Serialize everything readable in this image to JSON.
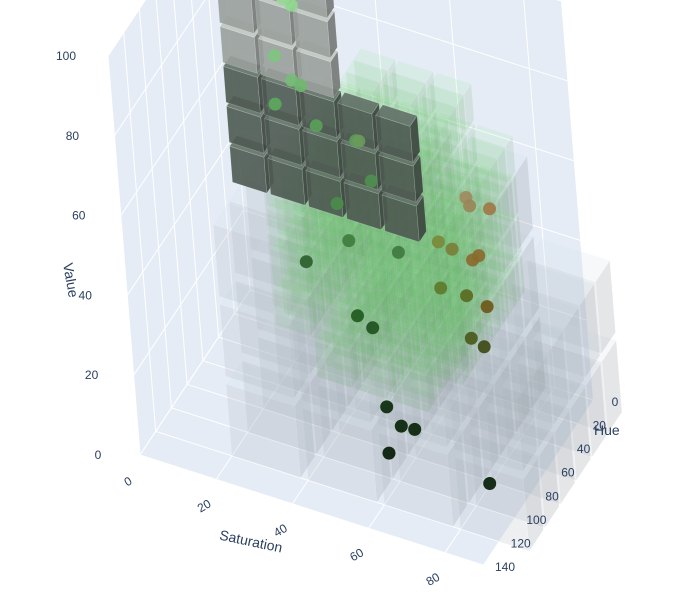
{
  "chart_data": {
    "type": "scatter",
    "projection": "3d",
    "axes": {
      "x": {
        "title": "Hue",
        "range": [
          0,
          140
        ],
        "ticks": [
          "0",
          "20",
          "40",
          "60",
          "80",
          "100",
          "120",
          "140"
        ]
      },
      "y": {
        "title": "Saturation",
        "range": [
          0,
          90
        ],
        "ticks": [
          "0",
          "20",
          "40",
          "60",
          "80"
        ]
      },
      "z": {
        "title": "Value",
        "range": [
          0,
          100
        ],
        "ticks": [
          "0",
          "20",
          "40",
          "60",
          "80",
          "100"
        ]
      }
    },
    "grid": true,
    "background": "#e5ecf6",
    "gridline_color": "#ffffff",
    "voxel_traces": [
      {
        "name": "gray-blocks",
        "color": "#8f9892",
        "opacity": 0.9
      },
      {
        "name": "green-cloud",
        "color": "#66bb66",
        "opacity": 0.35
      },
      {
        "name": "haze-grid",
        "color": "#aab3bb",
        "opacity": 0.2
      }
    ],
    "points": [
      {
        "hue": 5,
        "sat": 12,
        "val": 84,
        "color": "#8fdc8f"
      },
      {
        "hue": 12,
        "sat": 18,
        "val": 82,
        "color": "#9ad99a"
      },
      {
        "hue": 20,
        "sat": 22,
        "val": 84,
        "color": "#8fd98f"
      },
      {
        "hue": 10,
        "sat": 14,
        "val": 66,
        "color": "#7fc47f"
      },
      {
        "hue": 18,
        "sat": 20,
        "val": 64,
        "color": "#76bc76"
      },
      {
        "hue": 25,
        "sat": 24,
        "val": 66,
        "color": "#6fb86f"
      },
      {
        "hue": 22,
        "sat": 16,
        "val": 58,
        "color": "#5ca85c"
      },
      {
        "hue": 28,
        "sat": 28,
        "val": 58,
        "color": "#5aa05a"
      },
      {
        "hue": 35,
        "sat": 40,
        "val": 60,
        "color": "#5c9c5c"
      },
      {
        "hue": 40,
        "sat": 42,
        "val": 62,
        "color": "#6a9a5a"
      },
      {
        "hue": 38,
        "sat": 44,
        "val": 52,
        "color": "#4f8f4f"
      },
      {
        "hue": 45,
        "sat": 36,
        "val": 46,
        "color": "#4b8b4b"
      },
      {
        "hue": 52,
        "sat": 40,
        "val": 40,
        "color": "#3e7d3e"
      },
      {
        "hue": 60,
        "sat": 55,
        "val": 44,
        "color": "#3f7a3f"
      },
      {
        "hue": 60,
        "sat": 30,
        "val": 34,
        "color": "#2e5e2e"
      },
      {
        "hue": 50,
        "sat": 72,
        "val": 60,
        "color": "#a08a60"
      },
      {
        "hue": 55,
        "sat": 74,
        "val": 60,
        "color": "#9a8658"
      },
      {
        "hue": 58,
        "sat": 80,
        "val": 62,
        "color": "#a07846"
      },
      {
        "hue": 60,
        "sat": 66,
        "val": 50,
        "color": "#7a8a3a"
      },
      {
        "hue": 62,
        "sat": 70,
        "val": 50,
        "color": "#7a7f36"
      },
      {
        "hue": 65,
        "sat": 76,
        "val": 50,
        "color": "#8a6a30"
      },
      {
        "hue": 66,
        "sat": 78,
        "val": 52,
        "color": "#8a6a2c"
      },
      {
        "hue": 70,
        "sat": 68,
        "val": 42,
        "color": "#5e7a2a"
      },
      {
        "hue": 75,
        "sat": 76,
        "val": 44,
        "color": "#5a6a22"
      },
      {
        "hue": 78,
        "sat": 82,
        "val": 44,
        "color": "#6e5818"
      },
      {
        "hue": 82,
        "sat": 78,
        "val": 36,
        "color": "#4a5a1c"
      },
      {
        "hue": 85,
        "sat": 82,
        "val": 36,
        "color": "#3e4a16"
      },
      {
        "hue": 70,
        "sat": 45,
        "val": 28,
        "color": "#1f5a1f"
      },
      {
        "hue": 75,
        "sat": 50,
        "val": 28,
        "color": "#1f501f"
      },
      {
        "hue": 100,
        "sat": 58,
        "val": 18,
        "color": "#0a2a0a"
      },
      {
        "hue": 102,
        "sat": 62,
        "val": 15,
        "color": "#082408"
      },
      {
        "hue": 104,
        "sat": 66,
        "val": 16,
        "color": "#082408"
      },
      {
        "hue": 110,
        "sat": 60,
        "val": 10,
        "color": "#051a05"
      },
      {
        "hue": 125,
        "sat": 90,
        "val": 16,
        "color": "#061e06"
      }
    ]
  }
}
